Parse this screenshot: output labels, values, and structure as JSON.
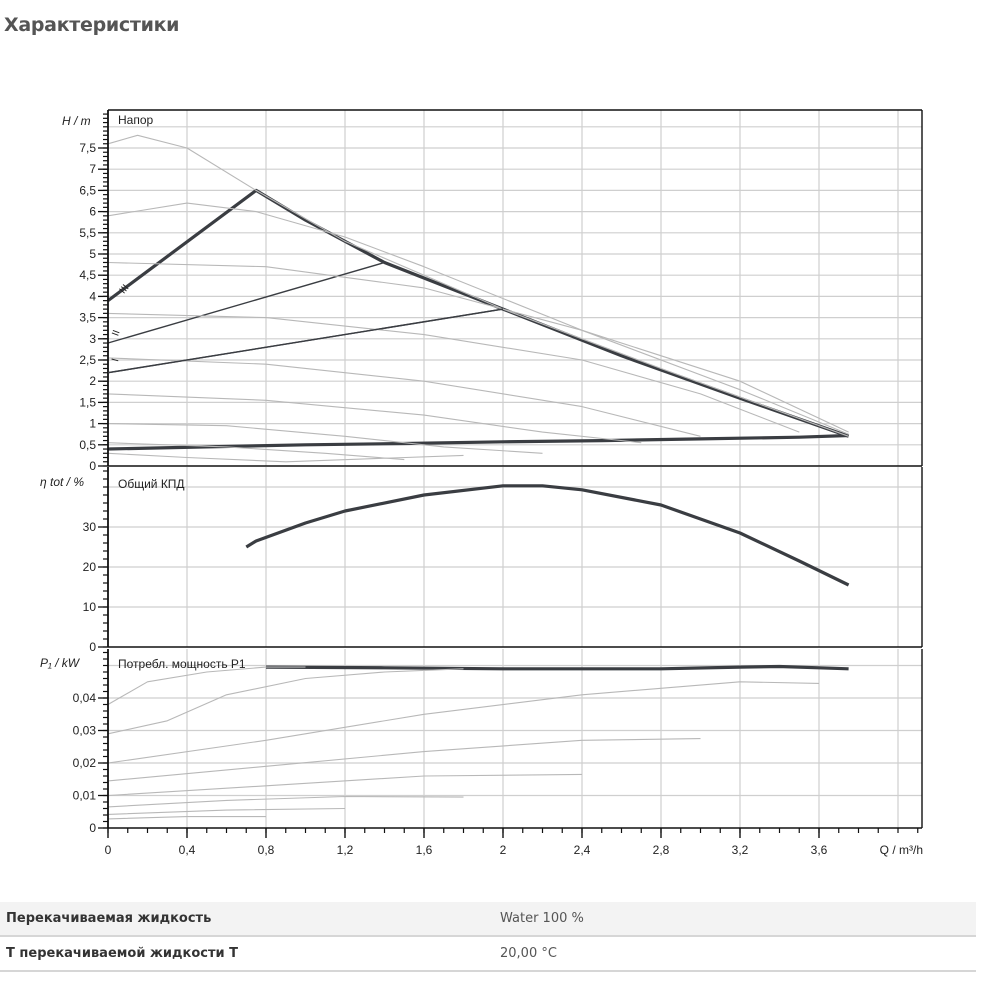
{
  "page": {
    "title": "Характеристики"
  },
  "properties": [
    {
      "label": "Перекачиваемая жидкость",
      "value": "Water 100 %"
    },
    {
      "label": "T перекачиваемой жидкости T",
      "value": "20,00 °C"
    }
  ],
  "chart_data": [
    {
      "type": "line",
      "title": "Напор",
      "xlabel": "Q / m³/h",
      "ylabel": "H / m",
      "xlim": [
        0,
        4.1
      ],
      "ylim": [
        0,
        8.2
      ],
      "grid": true,
      "x_ticks": [
        "0",
        "0,4",
        "0,8",
        "1,2",
        "1,6",
        "2",
        "2,4",
        "2,8",
        "3,2",
        "3,6"
      ],
      "y_ticks": [
        "0",
        "0,5",
        "1",
        "1,5",
        "2",
        "2,5",
        "3",
        "3,5",
        "4",
        "4,5",
        "5",
        "5,5",
        "6",
        "6,5",
        "7",
        "7,5"
      ],
      "annotations": [
        "I",
        "II",
        "III"
      ],
      "series": [
        {
          "name": "max-envelope",
          "style": "bold",
          "x": [
            0,
            0.75,
            1.0,
            1.4,
            2.0,
            2.6,
            3.2,
            3.75
          ],
          "y": [
            3.9,
            6.5,
            5.8,
            4.8,
            3.7,
            2.6,
            1.6,
            0.7
          ]
        },
        {
          "name": "min-envelope",
          "style": "bold",
          "x": [
            0,
            0.5,
            1.0,
            1.5,
            2.0,
            2.5,
            3.0,
            3.5,
            3.75
          ],
          "y": [
            0.4,
            0.45,
            0.5,
            0.53,
            0.57,
            0.6,
            0.64,
            0.68,
            0.72
          ]
        },
        {
          "name": "III",
          "style": "constant-pressure",
          "x": [
            0,
            1.4
          ],
          "y": [
            2.9,
            4.8
          ]
        },
        {
          "name": "II",
          "style": "constant-pressure",
          "x": [
            0,
            2.0
          ],
          "y": [
            2.2,
            3.7
          ]
        },
        {
          "name": "speed-curve-1",
          "style": "thin",
          "x": [
            0,
            0.15,
            0.4,
            0.75,
            1.2,
            2.0,
            2.8,
            3.75
          ],
          "y": [
            7.6,
            7.8,
            7.5,
            6.5,
            5.3,
            3.7,
            2.3,
            0.7
          ]
        },
        {
          "name": "speed-curve-2",
          "style": "thin",
          "x": [
            0,
            0.4,
            0.75,
            1.2,
            1.6,
            2.4,
            3.2,
            3.75
          ],
          "y": [
            5.9,
            6.2,
            6.0,
            5.4,
            4.7,
            3.2,
            1.8,
            0.75
          ]
        },
        {
          "name": "speed-curve-3",
          "style": "thin",
          "x": [
            0,
            0.8,
            1.6,
            2.4,
            3.2,
            3.75
          ],
          "y": [
            4.8,
            4.7,
            4.2,
            3.2,
            2.0,
            0.8
          ]
        },
        {
          "name": "speed-curve-4",
          "style": "thin",
          "x": [
            0,
            0.8,
            1.6,
            2.4,
            3.0,
            3.5
          ],
          "y": [
            3.6,
            3.5,
            3.1,
            2.5,
            1.7,
            0.8
          ]
        },
        {
          "name": "speed-curve-5",
          "style": "thin",
          "x": [
            0,
            0.8,
            1.6,
            2.4,
            3.0
          ],
          "y": [
            2.55,
            2.4,
            2.0,
            1.4,
            0.7
          ]
        },
        {
          "name": "speed-curve-6",
          "style": "thin",
          "x": [
            0,
            0.8,
            1.6,
            2.2,
            2.7
          ],
          "y": [
            1.7,
            1.55,
            1.2,
            0.8,
            0.55
          ]
        },
        {
          "name": "speed-curve-7",
          "style": "thin",
          "x": [
            0,
            0.6,
            1.2,
            1.7,
            2.2
          ],
          "y": [
            1.0,
            0.95,
            0.7,
            0.45,
            0.3
          ]
        },
        {
          "name": "speed-curve-8",
          "style": "thin",
          "x": [
            0,
            0.6,
            1.1,
            1.5
          ],
          "y": [
            0.55,
            0.45,
            0.3,
            0.15
          ]
        },
        {
          "name": "speed-curve-9",
          "style": "thin",
          "x": [
            0,
            0.4,
            0.9,
            1.8
          ],
          "y": [
            0.3,
            0.2,
            0.1,
            0.25
          ]
        }
      ]
    },
    {
      "type": "line",
      "title": "Общий КПД",
      "xlabel": "Q / m³/h",
      "ylabel": "η tot / %",
      "xlim": [
        0,
        4.1
      ],
      "ylim": [
        0,
        45
      ],
      "grid": true,
      "y_ticks": [
        "0",
        "10",
        "20",
        "30"
      ],
      "series": [
        {
          "name": "efficiency",
          "x": [
            0.7,
            0.75,
            1.0,
            1.2,
            1.6,
            2.0,
            2.2,
            2.4,
            2.8,
            3.2,
            3.5,
            3.75
          ],
          "y": [
            25,
            26.5,
            31,
            34,
            38,
            40.3,
            40.3,
            39.3,
            35.5,
            28.5,
            21.5,
            15.5
          ]
        }
      ]
    },
    {
      "type": "line",
      "title": "Потребл. мощность P1",
      "xlabel": "Q / m³/h",
      "ylabel": "P₁ / kW",
      "xlim": [
        0,
        4.1
      ],
      "ylim": [
        0,
        0.055
      ],
      "grid": true,
      "y_ticks": [
        "0",
        "0,01",
        "0,02",
        "0,03",
        "0,04"
      ],
      "series": [
        {
          "name": "max-power",
          "style": "bold",
          "x": [
            0.8,
            1.4,
            2.0,
            2.4,
            2.8,
            3.2,
            3.4,
            3.6,
            3.75
          ],
          "y": [
            0.0495,
            0.0493,
            0.049,
            0.049,
            0.049,
            0.0495,
            0.0497,
            0.0493,
            0.049
          ]
        },
        {
          "name": "p-curve-1",
          "style": "thin",
          "x": [
            0,
            0.2,
            0.5,
            0.8,
            1.0
          ],
          "y": [
            0.038,
            0.045,
            0.048,
            0.0495,
            0.0495
          ]
        },
        {
          "name": "p-curve-2",
          "style": "thin",
          "x": [
            0,
            0.3,
            0.6,
            1.0,
            1.4,
            1.8
          ],
          "y": [
            0.029,
            0.033,
            0.041,
            0.046,
            0.048,
            0.049
          ]
        },
        {
          "name": "p-curve-3",
          "style": "thin",
          "x": [
            0,
            0.8,
            1.6,
            2.4,
            3.2,
            3.6
          ],
          "y": [
            0.02,
            0.027,
            0.035,
            0.041,
            0.045,
            0.0445
          ]
        },
        {
          "name": "p-curve-4",
          "style": "thin",
          "x": [
            0,
            0.8,
            1.6,
            2.4,
            3.0
          ],
          "y": [
            0.0145,
            0.019,
            0.0235,
            0.027,
            0.0275
          ]
        },
        {
          "name": "p-curve-5",
          "style": "thin",
          "x": [
            0,
            0.8,
            1.6,
            2.4
          ],
          "y": [
            0.01,
            0.013,
            0.016,
            0.0165
          ]
        },
        {
          "name": "p-curve-6",
          "style": "thin",
          "x": [
            0,
            0.6,
            1.2,
            1.8
          ],
          "y": [
            0.0065,
            0.0085,
            0.0097,
            0.0095
          ]
        },
        {
          "name": "p-curve-7",
          "style": "thin",
          "x": [
            0,
            0.6,
            1.2
          ],
          "y": [
            0.0042,
            0.0055,
            0.006
          ]
        },
        {
          "name": "p-curve-8",
          "style": "thin",
          "x": [
            0,
            0.4,
            0.8
          ],
          "y": [
            0.0028,
            0.0035,
            0.0035
          ]
        }
      ]
    }
  ],
  "axes": {
    "x_label": "Q / m³/h",
    "x_ticks": [
      "0",
      "0,4",
      "0,8",
      "1,2",
      "1,6",
      "2",
      "2,4",
      "2,8",
      "3,2",
      "3,6"
    ],
    "head_label": "H / m",
    "eff_label": "η tot / %",
    "power_label": "P₁ / kW",
    "curve_labels": {
      "III": "III",
      "II": "II",
      "I": "I"
    }
  },
  "style": {
    "curve_dark": "#3a3d42",
    "curve_light": "#b8b8b8",
    "grid": "#cfcfcf",
    "frame": "#111111"
  }
}
